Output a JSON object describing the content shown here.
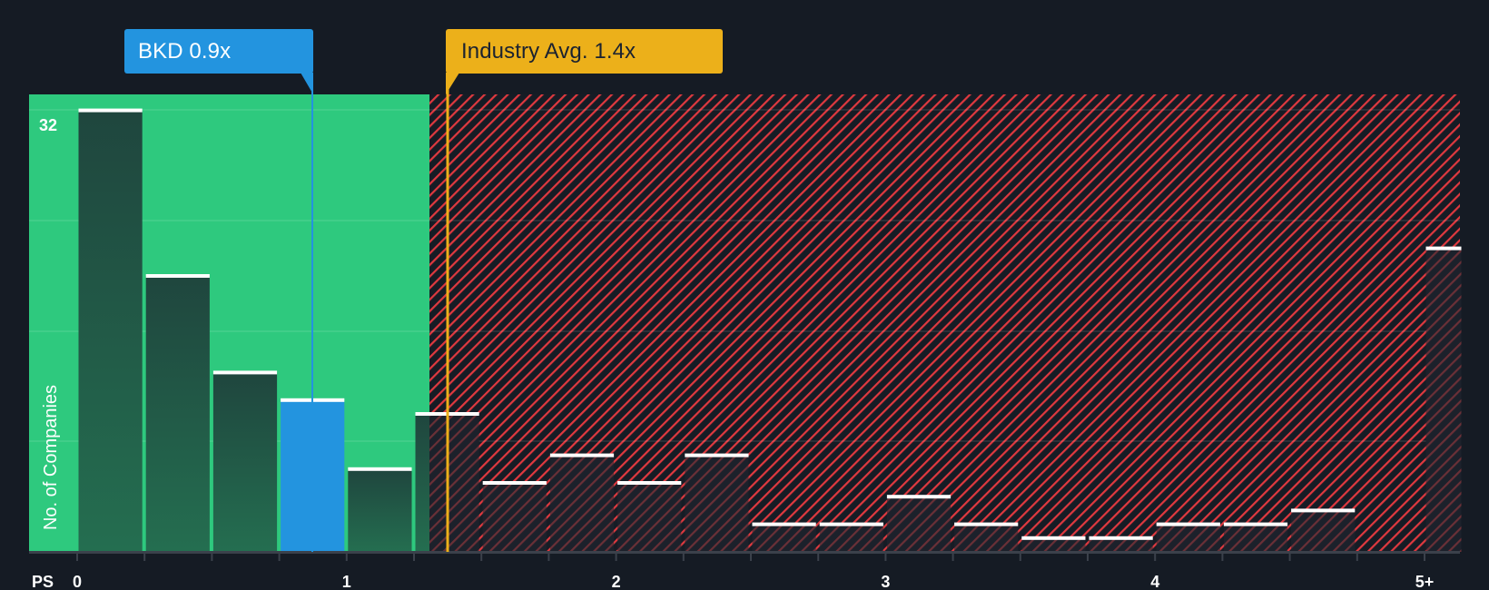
{
  "callouts": {
    "company": {
      "label": "BKD 0.9x",
      "ticker": "BKD",
      "value": 0.9,
      "color": "#2394df"
    },
    "industry": {
      "label": "Industry Avg. 1.4x",
      "value": 1.4,
      "color": "#ecb01a"
    }
  },
  "axes": {
    "y_label": "No. of Companies",
    "y_max_label": "32",
    "x_label": "PS",
    "x_ticks": [
      "0",
      "1",
      "2",
      "3",
      "4",
      "5+"
    ]
  },
  "colors": {
    "background": "#151b24",
    "undervalued_zone": "#2ec97e",
    "overvalued_hatch": "#e0393f",
    "bar": "#1f4a40",
    "highlight_bar": "#2394df",
    "bar_cap": "#ffffff"
  },
  "chart_data": {
    "type": "bar",
    "title": "",
    "xlabel": "PS",
    "ylabel": "No. of Companies",
    "categories": [
      "0-0.25",
      "0.25-0.5",
      "0.5-0.75",
      "0.75-1.0",
      "1.0-1.25",
      "1.25-1.5",
      "1.5-1.75",
      "1.75-2.0",
      "2.0-2.25",
      "2.25-2.5",
      "2.5-2.75",
      "2.75-3.0",
      "3.0-3.25",
      "3.25-3.5",
      "3.5-3.75",
      "3.75-4.0",
      "4.0-4.25",
      "4.25-4.5",
      "4.5-4.75",
      "4.75-5.0",
      "5+"
    ],
    "values": [
      32,
      20,
      13,
      11,
      6,
      10,
      5,
      7,
      5,
      7,
      2,
      2,
      4,
      2,
      1,
      1,
      2,
      2,
      3,
      0,
      22
    ],
    "highlight_index": 3,
    "x_tick_labels": [
      "0",
      "1",
      "2",
      "3",
      "4",
      "5+"
    ],
    "y_tick_labels": [
      "32"
    ],
    "ylim": [
      0,
      32
    ],
    "gridlines": [
      8,
      16,
      24,
      32
    ],
    "markers": [
      {
        "name": "BKD",
        "value": 0.9,
        "label": "BKD 0.9x"
      },
      {
        "name": "Industry Avg.",
        "value": 1.4,
        "label": "Industry Avg. 1.4x"
      }
    ],
    "zones": [
      {
        "name": "undervalued",
        "from": 0,
        "to": 1.3,
        "color": "#2ec97e"
      },
      {
        "name": "overvalued",
        "from": 1.3,
        "to": "5+",
        "pattern": "red diagonal hatch"
      }
    ],
    "legend": null
  }
}
